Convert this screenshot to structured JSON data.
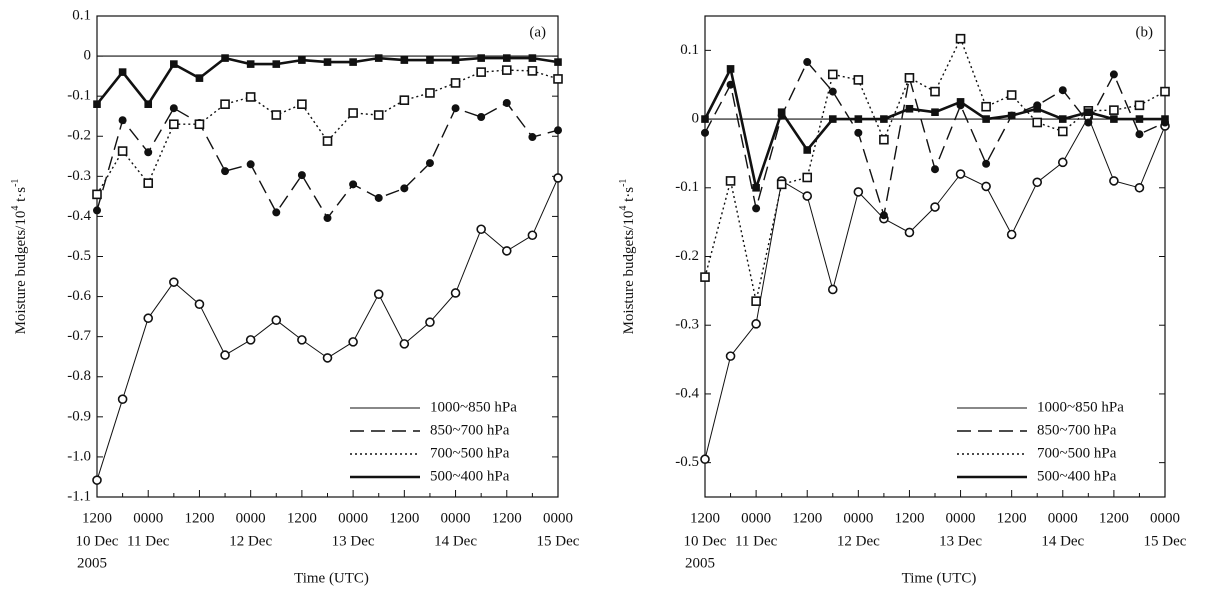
{
  "chart_data": [
    {
      "type": "line",
      "panel_label": "(a)",
      "ylabel": [
        "Moisture budgets/10",
        "4",
        " t·s",
        "-1"
      ],
      "xlabel": "Time (UTC)",
      "categories": [
        "1200",
        null,
        "0000",
        null,
        "1200",
        null,
        "0000",
        null,
        "1200",
        null,
        "0000",
        null,
        "1200",
        null,
        "0000",
        null,
        "1200",
        null,
        "0000"
      ],
      "x_dates": [
        "10 Dec",
        null,
        "11 Dec",
        null,
        null,
        null,
        "12 Dec",
        null,
        null,
        null,
        "13 Dec",
        null,
        null,
        null,
        "14 Dec",
        null,
        null,
        null,
        "15 Dec"
      ],
      "x_year": "2005",
      "ylim": [
        -1.1,
        0.1
      ],
      "yticks": [
        0.1,
        0,
        -0.1,
        -0.2,
        -0.3,
        -0.4,
        -0.5,
        -0.6,
        -0.7,
        -0.8,
        -0.9,
        {
          "value": -1,
          "label": "-1.0"
        },
        -1.1
      ],
      "zero_line": true,
      "legend": "lower right",
      "series": [
        {
          "name": "1000~850 hPa",
          "color": "#111111",
          "dash": "solid",
          "width": 1,
          "marker": "open-circle",
          "values": [
            -1.058,
            -0.856,
            -0.654,
            -0.564,
            -0.619,
            -0.746,
            -0.708,
            -0.659,
            -0.708,
            -0.753,
            -0.713,
            -0.594,
            -0.718,
            -0.664,
            -0.591,
            -0.432,
            -0.486,
            -0.447,
            -0.304
          ]
        },
        {
          "name": "850~700 hPa",
          "color": "#111111",
          "dash": "dashed",
          "width": 1.4,
          "marker": "filled-circle",
          "values": [
            -0.385,
            -0.16,
            -0.24,
            -0.13,
            -0.167,
            -0.287,
            -0.27,
            -0.39,
            -0.297,
            -0.404,
            -0.32,
            -0.354,
            -0.33,
            -0.267,
            -0.13,
            -0.152,
            -0.117,
            -0.202,
            -0.185
          ]
        },
        {
          "name": "700~500 hPa",
          "color": "#111111",
          "dash": "dotted",
          "width": 1.4,
          "marker": "open-square",
          "values": [
            -0.345,
            -0.237,
            -0.317,
            -0.17,
            -0.17,
            -0.12,
            -0.102,
            -0.147,
            -0.12,
            -0.212,
            -0.142,
            -0.147,
            -0.11,
            -0.092,
            -0.067,
            -0.04,
            -0.035,
            -0.037,
            -0.057
          ]
        },
        {
          "name": "500~400 hPa",
          "color": "#111111",
          "dash": "solid",
          "width": 2.6,
          "marker": "filled-square",
          "values": [
            -0.12,
            -0.04,
            -0.12,
            -0.02,
            -0.055,
            -0.005,
            -0.02,
            -0.02,
            -0.01,
            -0.015,
            -0.015,
            -0.005,
            -0.01,
            -0.01,
            -0.01,
            -0.005,
            -0.005,
            -0.005,
            -0.015
          ]
        }
      ]
    },
    {
      "type": "line",
      "panel_label": "(b)",
      "ylabel": [
        "Moisture budgets/10",
        "4",
        " t·s",
        "-1"
      ],
      "xlabel": "Time (UTC)",
      "categories": [
        "1200",
        null,
        "0000",
        null,
        "1200",
        null,
        "0000",
        null,
        "1200",
        null,
        "0000",
        null,
        "1200",
        null,
        "0000",
        null,
        "1200",
        null,
        "0000"
      ],
      "x_dates": [
        "10 Dec",
        null,
        "11 Dec",
        null,
        null,
        null,
        "12 Dec",
        null,
        null,
        null,
        "13 Dec",
        null,
        null,
        null,
        "14 Dec",
        null,
        null,
        null,
        "15 Dec"
      ],
      "x_year": "2005",
      "ylim": [
        -0.55,
        0.15
      ],
      "yticks": [
        0.1,
        0,
        -0.1,
        -0.2,
        -0.3,
        -0.4,
        -0.5
      ],
      "zero_line": true,
      "legend": "lower right",
      "series": [
        {
          "name": "1000~850 hPa",
          "color": "#111111",
          "dash": "solid",
          "width": 1,
          "marker": "open-circle",
          "values": [
            -0.495,
            -0.345,
            -0.298,
            -0.09,
            -0.112,
            -0.248,
            -0.106,
            -0.145,
            -0.165,
            -0.128,
            -0.08,
            -0.098,
            -0.168,
            -0.092,
            -0.063,
            0.003,
            -0.09,
            -0.1,
            -0.01
          ]
        },
        {
          "name": "850~700 hPa",
          "color": "#111111",
          "dash": "dashed",
          "width": 1.4,
          "marker": "filled-circle",
          "values": [
            -0.02,
            0.05,
            -0.13,
            0.005,
            0.083,
            0.04,
            -0.02,
            -0.14,
            0.06,
            -0.073,
            0.02,
            -0.065,
            0.005,
            0.02,
            0.042,
            -0.005,
            0.065,
            -0.022,
            -0.005
          ]
        },
        {
          "name": "700~500 hPa",
          "color": "#111111",
          "dash": "dotted",
          "width": 1.4,
          "marker": "open-square",
          "values": [
            -0.23,
            -0.09,
            -0.265,
            -0.095,
            -0.085,
            0.065,
            0.057,
            -0.03,
            0.06,
            0.04,
            0.117,
            0.018,
            0.035,
            -0.005,
            -0.018,
            0.012,
            0.013,
            0.02,
            0.04
          ]
        },
        {
          "name": "500~400 hPa",
          "color": "#111111",
          "dash": "solid",
          "width": 2.6,
          "marker": "filled-square",
          "values": [
            0,
            0.073,
            -0.1,
            0.01,
            -0.045,
            0,
            0,
            0,
            0.015,
            0.01,
            0.025,
            0,
            0.005,
            0.015,
            0,
            0.01,
            0,
            0,
            0
          ]
        }
      ]
    }
  ]
}
